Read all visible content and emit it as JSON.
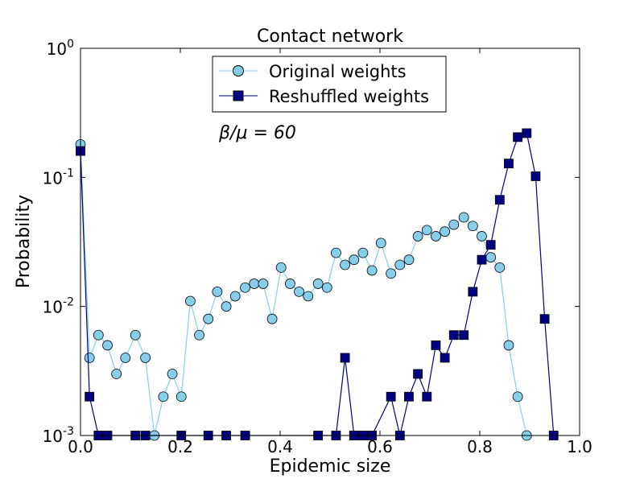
{
  "chart_data": {
    "type": "line",
    "title": "Contact network",
    "xlabel": "Epidemic size",
    "ylabel": "Probability",
    "xlim": [
      0,
      1
    ],
    "ylim": [
      0.001,
      1
    ],
    "yscale": "log",
    "annotation": "β/μ = 60",
    "x_ticks": [
      {
        "value": 0.0,
        "label": "0.0"
      },
      {
        "value": 0.2,
        "label": "0.2"
      },
      {
        "value": 0.4,
        "label": "0.4"
      },
      {
        "value": 0.6,
        "label": "0.6"
      },
      {
        "value": 0.8,
        "label": "0.8"
      },
      {
        "value": 1.0,
        "label": "1.0"
      }
    ],
    "y_ticks": [
      {
        "value": 0.001,
        "base": "10",
        "exp": "-3"
      },
      {
        "value": 0.01,
        "base": "10",
        "exp": "-2"
      },
      {
        "value": 0.1,
        "base": "10",
        "exp": "-1"
      },
      {
        "value": 1,
        "base": "10",
        "exp": "0"
      }
    ],
    "legend_position": "top-center",
    "series": [
      {
        "name": "Original weights",
        "color": "#87ceeb",
        "marker": "circle",
        "x": [
          0.0,
          0.018,
          0.036,
          0.054,
          0.072,
          0.09,
          0.11,
          0.13,
          0.148,
          0.166,
          0.184,
          0.202,
          0.22,
          0.238,
          0.256,
          0.274,
          0.292,
          0.31,
          0.33,
          0.348,
          0.366,
          0.384,
          0.402,
          0.42,
          0.438,
          0.456,
          0.476,
          0.494,
          0.512,
          0.53,
          0.548,
          0.566,
          0.584,
          0.602,
          0.622,
          0.64,
          0.658,
          0.676,
          0.694,
          0.712,
          0.73,
          0.748,
          0.768,
          0.786,
          0.804,
          0.822,
          0.84,
          0.858,
          0.876,
          0.894
        ],
        "values": [
          0.18,
          0.004,
          0.006,
          0.005,
          0.003,
          0.004,
          0.006,
          0.004,
          0.001,
          0.002,
          0.003,
          0.002,
          0.011,
          0.006,
          0.008,
          0.013,
          0.01,
          0.012,
          0.014,
          0.015,
          0.015,
          0.008,
          0.02,
          0.015,
          0.013,
          0.012,
          0.015,
          0.014,
          0.026,
          0.021,
          0.023,
          0.026,
          0.019,
          0.031,
          0.018,
          0.021,
          0.023,
          0.035,
          0.039,
          0.035,
          0.038,
          0.043,
          0.049,
          0.042,
          0.035,
          0.024,
          0.02,
          0.005,
          0.002,
          0.001
        ]
      },
      {
        "name": "Reshuffled weights",
        "color": "#000080",
        "marker": "square",
        "x": [
          0.0,
          0.018,
          0.036,
          0.054,
          0.11,
          0.13,
          0.202,
          0.256,
          0.292,
          0.33,
          0.476,
          0.512,
          0.53,
          0.548,
          0.566,
          0.584,
          0.622,
          0.64,
          0.658,
          0.676,
          0.694,
          0.712,
          0.73,
          0.748,
          0.768,
          0.786,
          0.804,
          0.822,
          0.84,
          0.858,
          0.876,
          0.894,
          0.912,
          0.93,
          0.948
        ],
        "values": [
          0.16,
          0.002,
          0.001,
          0.001,
          0.001,
          0.001,
          0.001,
          0.001,
          0.001,
          0.001,
          0.001,
          0.001,
          0.004,
          0.001,
          0.001,
          0.001,
          0.002,
          0.001,
          0.002,
          0.003,
          0.002,
          0.005,
          0.004,
          0.006,
          0.006,
          0.013,
          0.023,
          0.03,
          0.067,
          0.128,
          0.205,
          0.22,
          0.102,
          0.008,
          0.001
        ]
      }
    ]
  }
}
